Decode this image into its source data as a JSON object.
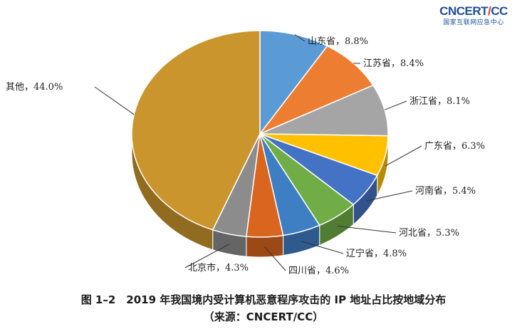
{
  "logo": {
    "brand_prefix": "CNCERT",
    "brand_sep": "/",
    "brand_suffix": "CC",
    "subtitle": "国家互联网应急中心"
  },
  "caption": {
    "line1": "图 1–2　2019 年我国境内受计算机恶意程序攻击的 IP 地址占比按地域分布",
    "line2": "（来源：CNCERT/CC）"
  },
  "chart_data": {
    "type": "pie",
    "categories": [
      "山东省",
      "江苏省",
      "浙江省",
      "广东省",
      "河南省",
      "河北省",
      "辽宁省",
      "四川省",
      "北京市",
      "其他"
    ],
    "values": [
      8.8,
      8.4,
      8.1,
      6.3,
      5.4,
      5.3,
      4.8,
      4.6,
      4.3,
      44.0
    ],
    "labels": [
      "山东省，8.8%",
      "江苏省，8.4%",
      "浙江省，8.1%",
      "广东省，6.3%",
      "河南省，5.4%",
      "河北省，5.3%",
      "辽宁省，4.8%",
      "四川省，4.6%",
      "北京市，4.3%",
      "其他，44.0%"
    ],
    "colors": [
      "#5b9bd5",
      "#ed7d31",
      "#a5a5a5",
      "#ffc000",
      "#4472c4",
      "#70ad47",
      "#3e7fc4",
      "#d9651f",
      "#8c8c8c",
      "#c9952c"
    ],
    "three_d": true,
    "legend": "none"
  }
}
